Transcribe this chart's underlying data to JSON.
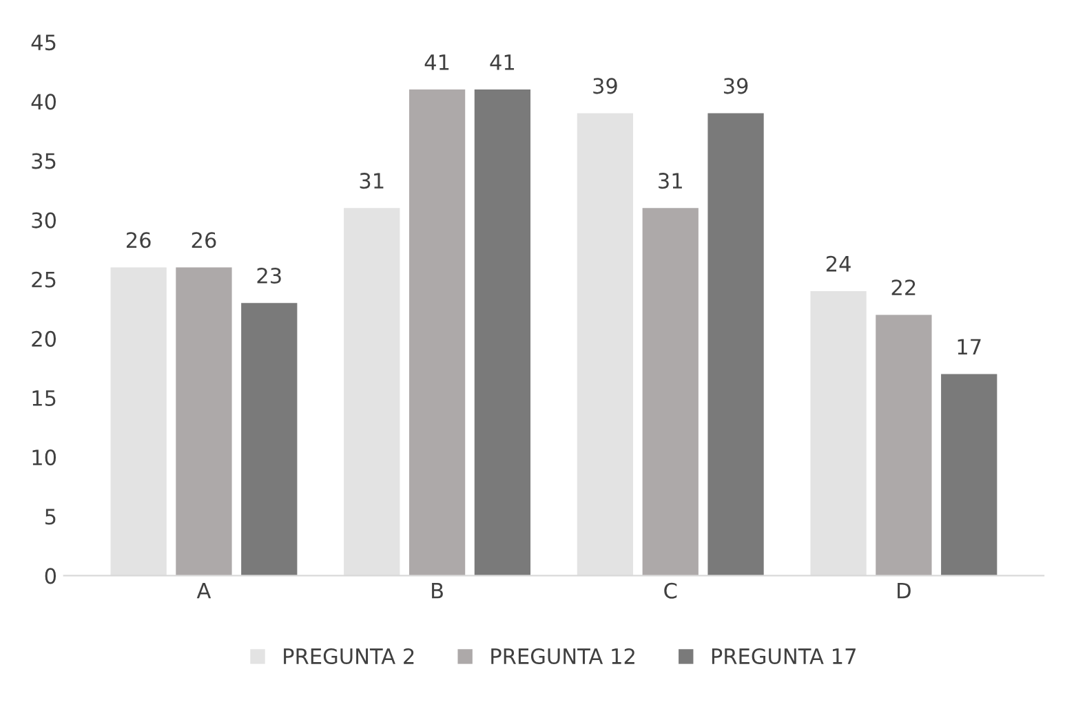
{
  "chart_data": {
    "type": "bar",
    "categories": [
      "A",
      "B",
      "C",
      "D"
    ],
    "series": [
      {
        "name": "PREGUNTA 2",
        "color": "#e3e3e3",
        "values": [
          26,
          31,
          39,
          24
        ]
      },
      {
        "name": "PREGUNTA 12",
        "color": "#ada9a9",
        "values": [
          26,
          41,
          31,
          22
        ]
      },
      {
        "name": "PREGUNTA 17",
        "color": "#7a7a7a",
        "values": [
          23,
          41,
          39,
          17
        ]
      }
    ],
    "ylim": [
      0,
      45
    ],
    "yticks": [
      0,
      5,
      10,
      15,
      20,
      25,
      30,
      35,
      40,
      45
    ],
    "grid": false,
    "legend": "bottom",
    "data_labels": true
  }
}
